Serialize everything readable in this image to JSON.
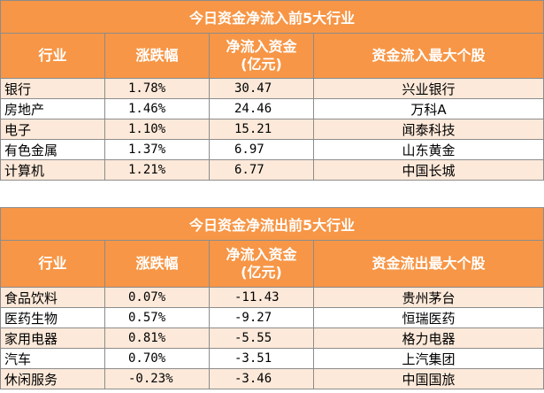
{
  "inflow_table": {
    "title": "今日资金净流入前5大行业",
    "headers": [
      "行业",
      "涨跌幅",
      "净流入资金",
      "(亿元)",
      "资金流入最大个股"
    ],
    "rows": [
      {
        "industry": "银行",
        "change": "1.78%",
        "net_flow": "30.47",
        "top_stock": "兴业银行"
      },
      {
        "industry": "房地产",
        "change": "1.46%",
        "net_flow": "24.46",
        "top_stock": "万科A"
      },
      {
        "industry": "电子",
        "change": "1.10%",
        "net_flow": "15.21",
        "top_stock": "闻泰科技"
      },
      {
        "industry": "有色金属",
        "change": "1.37%",
        "net_flow": "6.97",
        "top_stock": "山东黄金"
      },
      {
        "industry": "计算机",
        "change": "1.21%",
        "net_flow": "6.77",
        "top_stock": "中国长城"
      }
    ]
  },
  "outflow_table": {
    "title": "今日资金净流出前5大行业",
    "headers": [
      "行业",
      "涨跌幅",
      "净流入资金",
      "(亿元)",
      "资金流出最大个股"
    ],
    "rows": [
      {
        "industry": "食品饮料",
        "change": "0.07%",
        "net_flow": "-11.43",
        "top_stock": "贵州茅台"
      },
      {
        "industry": "医药生物",
        "change": "0.57%",
        "net_flow": "-9.27",
        "top_stock": "恒瑞医药"
      },
      {
        "industry": "家用电器",
        "change": "0.81%",
        "net_flow": "-5.55",
        "top_stock": "格力电器"
      },
      {
        "industry": "汽车",
        "change": "0.70%",
        "net_flow": "-3.51",
        "top_stock": "上汽集团"
      },
      {
        "industry": "休闲服务",
        "change": "-0.23%",
        "net_flow": "-3.46",
        "top_stock": "中国国旅"
      }
    ]
  }
}
